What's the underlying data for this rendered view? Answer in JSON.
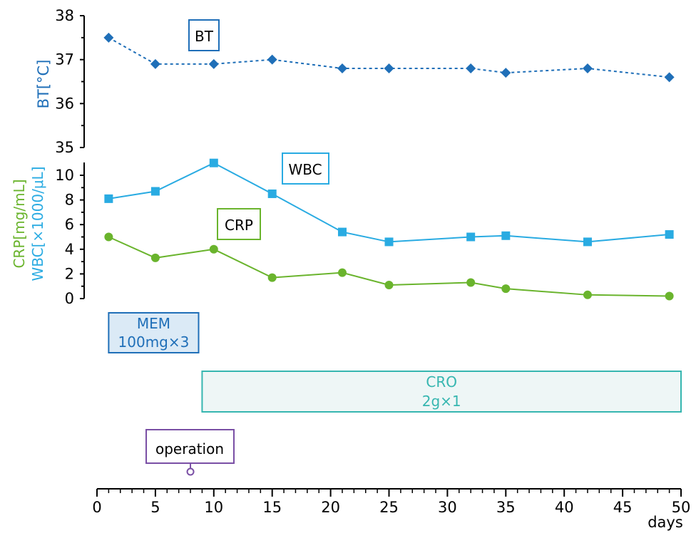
{
  "chart_data": {
    "type": "line",
    "xlabel": "days",
    "xlim": [
      0,
      50
    ],
    "x_ticks": [
      "0",
      "5",
      "10",
      "15",
      "20",
      "25",
      "30",
      "35",
      "40",
      "45",
      "50"
    ],
    "x": [
      1,
      5,
      10,
      15,
      21,
      25,
      32,
      35,
      42,
      49
    ],
    "panels": {
      "bt": {
        "ylabel": "BT[°C]",
        "ylim": [
          35,
          38
        ],
        "y_ticks": [
          "35",
          "36",
          "37",
          "38"
        ],
        "color": "#1f6fb8",
        "series": [
          {
            "name": "BT",
            "marker": "diamond",
            "line_style": "dotted",
            "values": [
              37.5,
              36.9,
              36.9,
              37.0,
              36.8,
              36.8,
              36.8,
              36.7,
              36.8,
              36.6
            ]
          }
        ]
      },
      "labs": {
        "ylabel_crp": "CRP[mg/mL]",
        "ylabel_wbc": "WBC[×1000/μL]",
        "ylim": [
          0,
          11
        ],
        "y_ticks": [
          "0",
          "2",
          "4",
          "6",
          "8",
          "10"
        ],
        "series": [
          {
            "name": "WBC",
            "color": "#29abe2",
            "marker": "square",
            "values": [
              8.1,
              8.7,
              11.0,
              8.5,
              5.4,
              4.6,
              5.0,
              5.1,
              4.6,
              5.2
            ]
          },
          {
            "name": "CRP",
            "color": "#6ab42d",
            "marker": "circle",
            "values": [
              5.0,
              3.3,
              4.0,
              1.7,
              2.1,
              1.1,
              1.3,
              0.8,
              0.3,
              0.2
            ]
          }
        ]
      }
    },
    "treatments": [
      {
        "id": "mem",
        "line1": "MEM",
        "line2": "100mg×3",
        "start": 1,
        "end": 8.7,
        "color": "#1f6fb8",
        "fill": "#dbeaf6"
      },
      {
        "id": "cro",
        "line1": "CRO",
        "line2": "2g×1",
        "start": 9,
        "end": 50,
        "color": "#36b6b0",
        "fill": "#eef6f6"
      }
    ],
    "events": [
      {
        "id": "operation",
        "label": "operation",
        "day": 8,
        "color": "#7a4fa5"
      }
    ]
  }
}
